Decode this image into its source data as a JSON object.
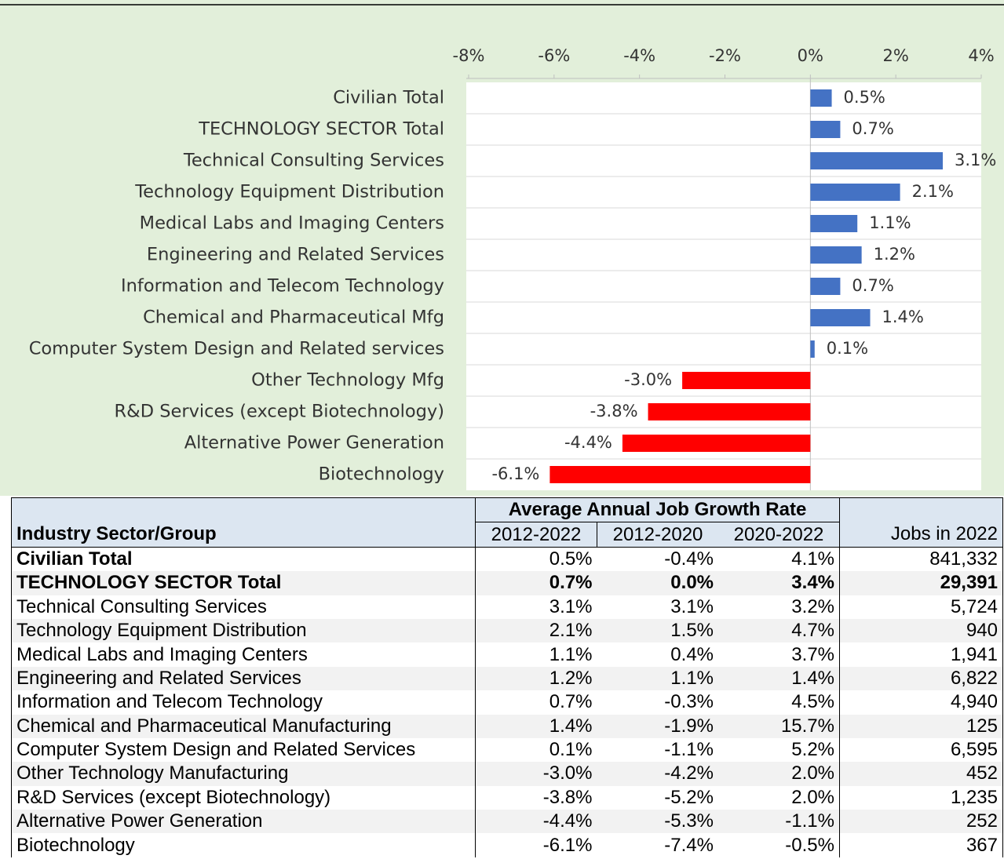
{
  "chart_data": {
    "type": "bar",
    "orientation": "horizontal",
    "categories": [
      "Civilian Total",
      "TECHNOLOGY SECTOR Total",
      "Technical Consulting Services",
      "Technology Equipment Distribution",
      "Medical Labs and Imaging Centers",
      "Engineering and Related Services",
      "Information and Telecom Technology",
      "Chemical and Pharmaceutical Mfg",
      "Computer System Design and Related services",
      "Other Technology Mfg",
      "R&D Services (except Biotechnology)",
      "Alternative Power Generation",
      "Biotechnology"
    ],
    "values": [
      0.5,
      0.7,
      3.1,
      2.1,
      1.1,
      1.2,
      0.7,
      1.4,
      0.1,
      -3.0,
      -3.8,
      -4.4,
      -6.1
    ],
    "value_labels": [
      "0.5%",
      "0.7%",
      "3.1%",
      "2.1%",
      "1.1%",
      "1.2%",
      "0.7%",
      "1.4%",
      "0.1%",
      "-3.0%",
      "-3.8%",
      "-4.4%",
      "-6.1%"
    ],
    "color_positive": "#4472c4",
    "color_negative": "#ff0000",
    "xlim": [
      -8,
      4
    ],
    "xticks": [
      {
        "value": -8,
        "label": "-8%"
      },
      {
        "value": -6,
        "label": "-6%"
      },
      {
        "value": -4,
        "label": "-4%"
      },
      {
        "value": -2,
        "label": "-2%"
      },
      {
        "value": 0,
        "label": "0%"
      },
      {
        "value": 2,
        "label": "2%"
      },
      {
        "value": 4,
        "label": "4%"
      }
    ],
    "grid": true
  },
  "table": {
    "group_header": "Average Annual Job Growth Rate",
    "headers": [
      "Industry Sector/Group",
      "2012-2022",
      "2012-2020",
      "2020-2022",
      "Jobs in 2022"
    ],
    "rows": [
      [
        "Civilian Total",
        "0.5%",
        "-0.4%",
        "4.1%",
        "841,332"
      ],
      [
        "TECHNOLOGY SECTOR Total",
        "0.7%",
        "0.0%",
        "3.4%",
        "29,391"
      ],
      [
        "Technical Consulting Services",
        "3.1%",
        "3.1%",
        "3.2%",
        "5,724"
      ],
      [
        "Technology Equipment Distribution",
        "2.1%",
        "1.5%",
        "4.7%",
        "940"
      ],
      [
        "Medical Labs and Imaging Centers",
        "1.1%",
        "0.4%",
        "3.7%",
        "1,941"
      ],
      [
        "Engineering and Related Services",
        "1.2%",
        "1.1%",
        "1.4%",
        "6,822"
      ],
      [
        "Information and Telecom Technology",
        "0.7%",
        "-0.3%",
        "4.5%",
        "4,940"
      ],
      [
        "Chemical and Pharmaceutical Manufacturing",
        "1.4%",
        "-1.9%",
        "15.7%",
        "125"
      ],
      [
        "Computer System Design and Related Services",
        "0.1%",
        "-1.1%",
        "5.2%",
        "6,595"
      ],
      [
        "Other Technology Manufacturing",
        "-3.0%",
        "-4.2%",
        "2.0%",
        "452"
      ],
      [
        "R&D Services (except Biotechnology)",
        "-3.8%",
        "-5.2%",
        "2.0%",
        "1,235"
      ],
      [
        "Alternative Power Generation",
        "-4.4%",
        "-5.3%",
        "-1.1%",
        "252"
      ],
      [
        "Biotechnology",
        "-6.1%",
        "-7.4%",
        "-0.5%",
        "367"
      ]
    ]
  }
}
